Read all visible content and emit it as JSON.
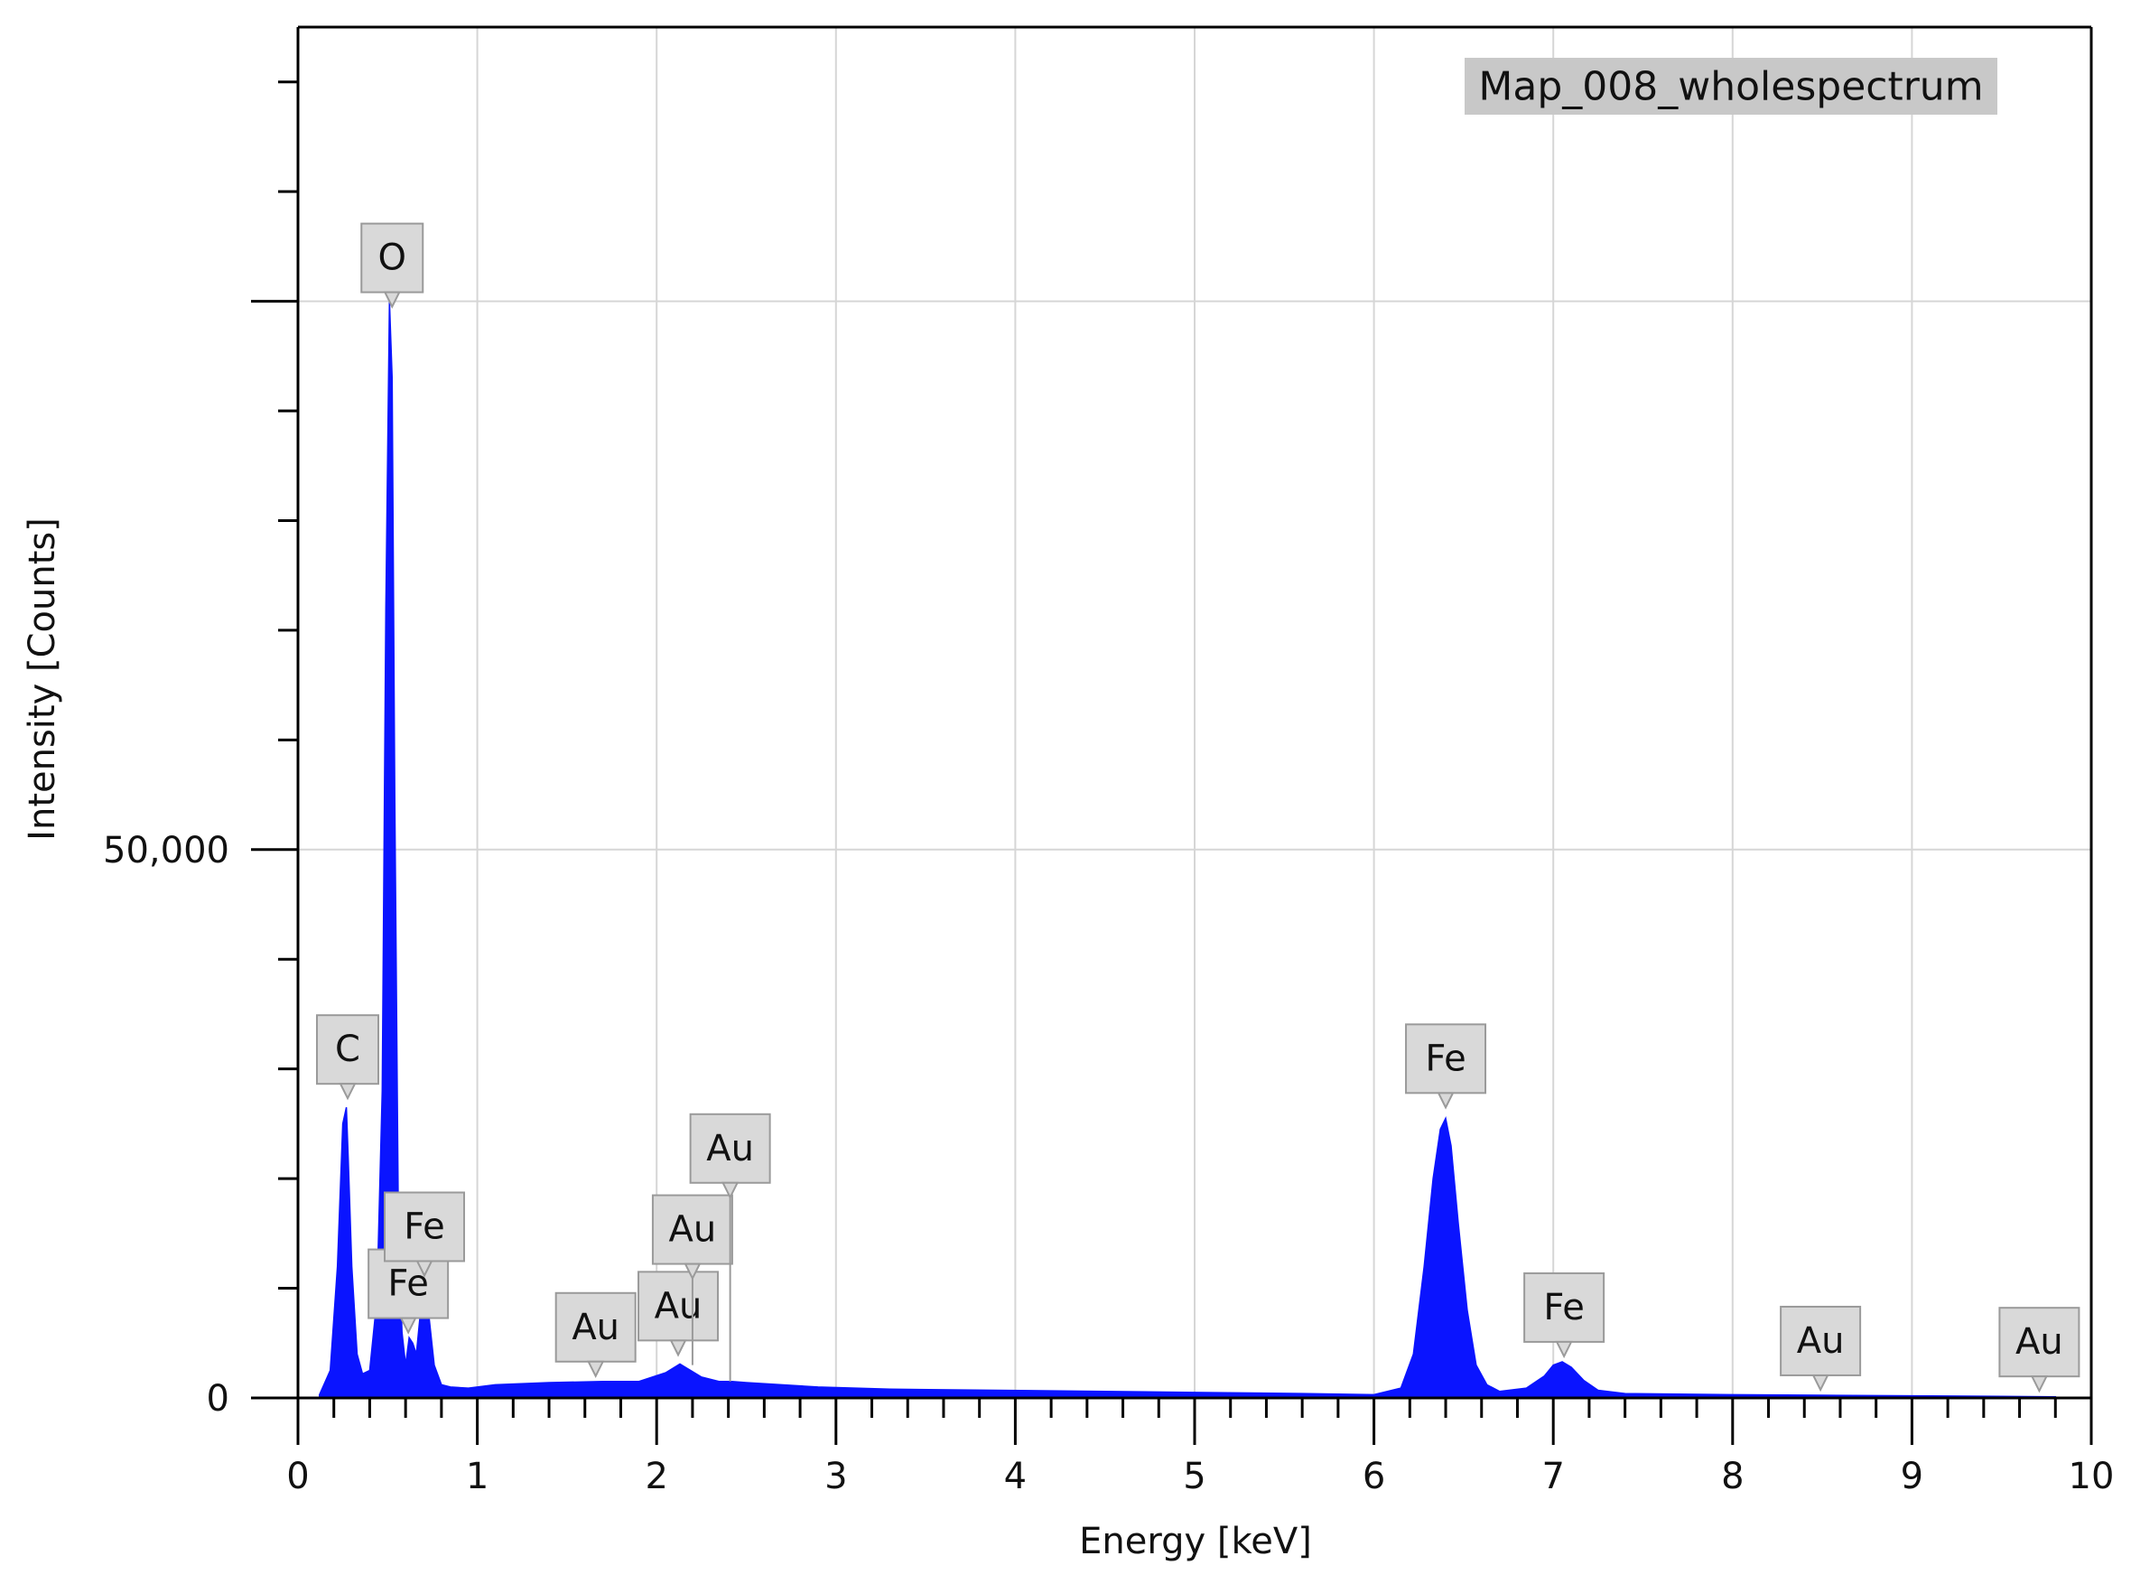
{
  "chart_data": {
    "type": "area",
    "title": "",
    "legend": {
      "label": "Map_008_wholespectrum",
      "placement": "top-right"
    },
    "xlabel": "Energy [keV]",
    "ylabel": "Intensity [Counts]",
    "xlim": [
      0,
      10
    ],
    "ylim": [
      0,
      125000
    ],
    "x_ticks": [
      "0",
      "1",
      "2",
      "3",
      "4",
      "5",
      "6",
      "7",
      "8",
      "9",
      "10"
    ],
    "y_tick_labels": [
      {
        "value": 0,
        "label": "0"
      },
      {
        "value": 50000,
        "label": "50,000"
      }
    ],
    "y_major_gridlines": [
      0,
      50000,
      100000
    ],
    "y_minor_tick_step": 10000,
    "x_minor_tick_step": 0.2,
    "grid": true,
    "series": [
      {
        "color": "#0a14ff",
        "x": [
          0.12,
          0.18,
          0.22,
          0.25,
          0.27,
          0.28,
          0.3,
          0.33,
          0.36,
          0.4,
          0.44,
          0.47,
          0.49,
          0.51,
          0.525,
          0.54,
          0.56,
          0.58,
          0.6,
          0.62,
          0.64,
          0.66,
          0.69,
          0.71,
          0.73,
          0.76,
          0.8,
          0.85,
          0.95,
          1.1,
          1.4,
          1.7,
          1.9,
          2.05,
          2.13,
          2.18,
          2.25,
          2.35,
          2.42,
          2.5,
          2.9,
          3.3,
          3.9,
          4.5,
          5.0,
          5.6,
          6.0,
          6.15,
          6.22,
          6.28,
          6.33,
          6.37,
          6.4,
          6.43,
          6.47,
          6.52,
          6.57,
          6.63,
          6.7,
          6.85,
          6.95,
          7.0,
          7.05,
          7.1,
          7.17,
          7.25,
          7.4,
          8.0,
          8.5,
          9.0,
          9.5,
          9.8
        ],
        "y": [
          300,
          2500,
          12000,
          25000,
          26500,
          22000,
          12000,
          4000,
          2200,
          2500,
          9000,
          28000,
          72000,
          100000,
          93000,
          55000,
          16000,
          6000,
          3000,
          5500,
          5000,
          4000,
          9000,
          10500,
          7500,
          3000,
          1200,
          1000,
          900,
          1200,
          1400,
          1500,
          1500,
          2300,
          3100,
          2600,
          1900,
          1500,
          1500,
          1400,
          1000,
          800,
          700,
          600,
          500,
          400,
          300,
          900,
          4000,
          12000,
          20000,
          24500,
          25500,
          23000,
          16000,
          8000,
          3000,
          1200,
          600,
          900,
          2000,
          3000,
          3300,
          2800,
          1600,
          700,
          400,
          300,
          250,
          200,
          150,
          100
        ]
      }
    ],
    "peak_labels": [
      {
        "element": "C",
        "energy": 0.277,
        "counts": 26500
      },
      {
        "element": "O",
        "energy": 0.525,
        "counts": 100000
      },
      {
        "element": "Fe",
        "energy": 0.615,
        "counts": 5800
      },
      {
        "element": "Fe",
        "energy": 0.705,
        "counts": 10500
      },
      {
        "element": "Au",
        "energy": 1.66,
        "counts": 1500
      },
      {
        "element": "Au",
        "energy": 2.12,
        "counts": 3100
      },
      {
        "element": "Au",
        "energy": 2.2,
        "counts": 3000
      },
      {
        "element": "Au",
        "energy": 2.41,
        "counts": 1500
      },
      {
        "element": "Fe",
        "energy": 6.4,
        "counts": 25500
      },
      {
        "element": "Fe",
        "energy": 7.06,
        "counts": 3300
      },
      {
        "element": "Au",
        "energy": 8.49,
        "counts": 250
      },
      {
        "element": "Au",
        "energy": 9.71,
        "counts": 150
      }
    ]
  }
}
